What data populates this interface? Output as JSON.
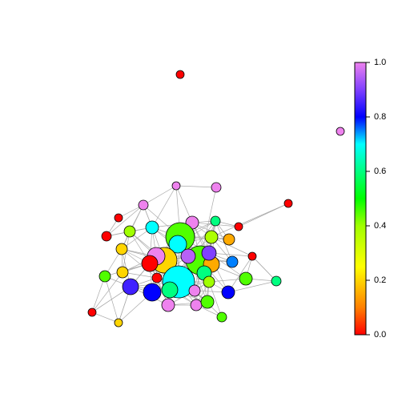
{
  "chart_data": {
    "type": "network",
    "values": [
      0.0,
      1.0,
      1.0,
      1.0,
      1.0,
      0.0,
      0.0,
      1.0,
      0.6,
      0.0,
      0.7,
      0.4,
      0.0,
      0.45,
      0.38,
      0.15,
      0.2,
      0.7,
      0.2,
      1.0,
      0.45,
      0.15,
      0.9,
      0.95,
      0.75,
      0.0,
      0.0,
      0.6,
      0.7,
      0.0,
      0.2,
      0.45,
      0.4,
      0.45,
      0.6,
      0.85,
      0.8,
      0.6,
      1.0,
      0.8,
      1.0,
      1.0,
      0.45,
      0.0,
      0.2,
      0.45
    ],
    "ylim": [
      0,
      1
    ],
    "yticks": [
      {
        "value": 0,
        "label": "0.0"
      },
      0.2,
      0.4,
      0.6,
      0.8,
      {
        "value": 1,
        "label": "1.0"
      }
    ]
  }
}
